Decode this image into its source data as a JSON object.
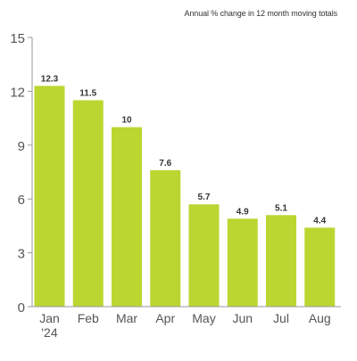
{
  "chart_data": {
    "type": "bar",
    "title": "",
    "subtitle": "Annual % change in 12 month moving totals",
    "categories": [
      "Jan\n'24",
      "Feb",
      "Mar",
      "Apr",
      "May",
      "Jun",
      "Jul",
      "Aug"
    ],
    "values": [
      12.3,
      11.5,
      10,
      7.6,
      5.7,
      4.9,
      5.1,
      4.4
    ],
    "value_labels": [
      "12.3",
      "11.5",
      "10",
      "7.6",
      "5.7",
      "4.9",
      "5.1",
      "4.4"
    ],
    "y_ticks": [
      0,
      3,
      6,
      9,
      12,
      15
    ],
    "ylim": [
      0,
      15
    ],
    "xlabel": "",
    "ylabel": "",
    "grid": false,
    "legend": "none",
    "bar_color": "#bcd631",
    "axis_color": "#999999",
    "tick_label_color": "#555555"
  }
}
